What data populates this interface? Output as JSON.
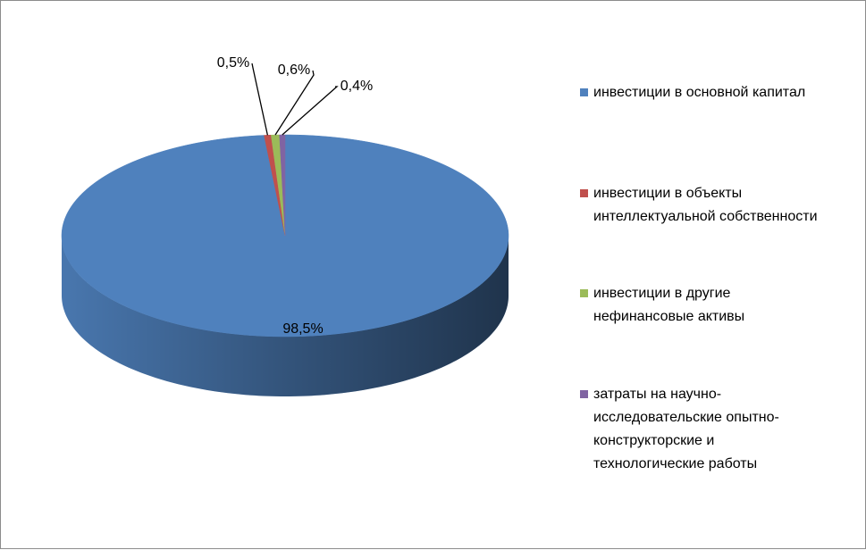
{
  "chart_data": {
    "type": "pie",
    "categories": [
      "инвестиции в основной капитал",
      "инвестиции в объекты интеллектуальной собственности",
      "инвестиции в другие нефинансовые активы",
      "затраты на научно-исследовательские опытно-конструкторские и технологические работы"
    ],
    "values": [
      98.5,
      0.5,
      0.6,
      0.4
    ],
    "value_labels": [
      "98,5%",
      "0,5%",
      "0,6%",
      "0,4%"
    ],
    "colors": [
      "#4f81bd",
      "#c0504d",
      "#9bbb59",
      "#8064a2"
    ],
    "legend": "right"
  }
}
